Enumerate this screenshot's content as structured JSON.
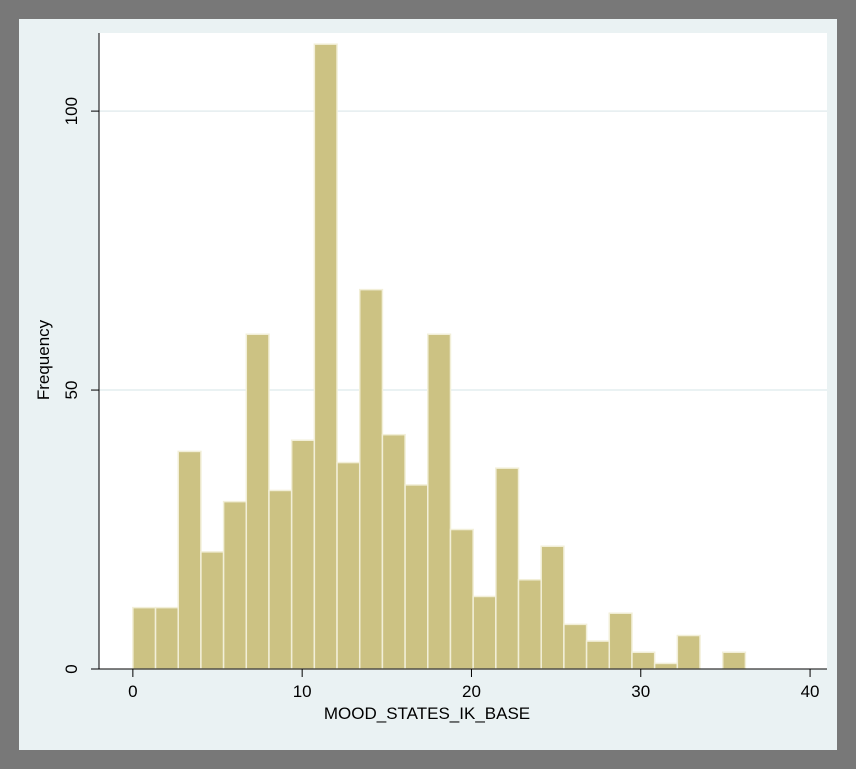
{
  "chart_data": {
    "type": "bar",
    "subtype": "histogram",
    "title": "",
    "xlabel": "MOOD_STATES_IK_BASE",
    "ylabel": "Frequency",
    "xlim": [
      -2,
      41
    ],
    "ylim": [
      0,
      114
    ],
    "x_ticks": [
      0,
      10,
      20,
      30,
      40
    ],
    "y_ticks": [
      0,
      50,
      100
    ],
    "grid": "horizontal",
    "legend": "none",
    "bin_width": 1.34,
    "bins": [
      {
        "start": 0.0,
        "value": 11
      },
      {
        "start": 1.34,
        "value": 11
      },
      {
        "start": 2.68,
        "value": 39
      },
      {
        "start": 4.02,
        "value": 21
      },
      {
        "start": 5.36,
        "value": 30
      },
      {
        "start": 6.7,
        "value": 60
      },
      {
        "start": 8.04,
        "value": 32
      },
      {
        "start": 9.38,
        "value": 41
      },
      {
        "start": 10.72,
        "value": 112
      },
      {
        "start": 12.06,
        "value": 37
      },
      {
        "start": 13.4,
        "value": 68
      },
      {
        "start": 14.74,
        "value": 42
      },
      {
        "start": 16.08,
        "value": 33
      },
      {
        "start": 17.42,
        "value": 60
      },
      {
        "start": 18.76,
        "value": 25
      },
      {
        "start": 20.1,
        "value": 13
      },
      {
        "start": 21.44,
        "value": 36
      },
      {
        "start": 22.78,
        "value": 16
      },
      {
        "start": 24.12,
        "value": 22
      },
      {
        "start": 25.46,
        "value": 8
      },
      {
        "start": 26.8,
        "value": 5
      },
      {
        "start": 28.14,
        "value": 10
      },
      {
        "start": 29.48,
        "value": 3
      },
      {
        "start": 30.82,
        "value": 1
      },
      {
        "start": 32.16,
        "value": 6
      },
      {
        "start": 33.5,
        "value": 0
      },
      {
        "start": 34.84,
        "value": 3
      }
    ],
    "colors": {
      "bar_fill": "#ccc283",
      "bar_stroke": "#f2efd8",
      "plot_background": "#ffffff",
      "outer_background": "#eaf2f3",
      "gridline": "#e4edef"
    }
  }
}
